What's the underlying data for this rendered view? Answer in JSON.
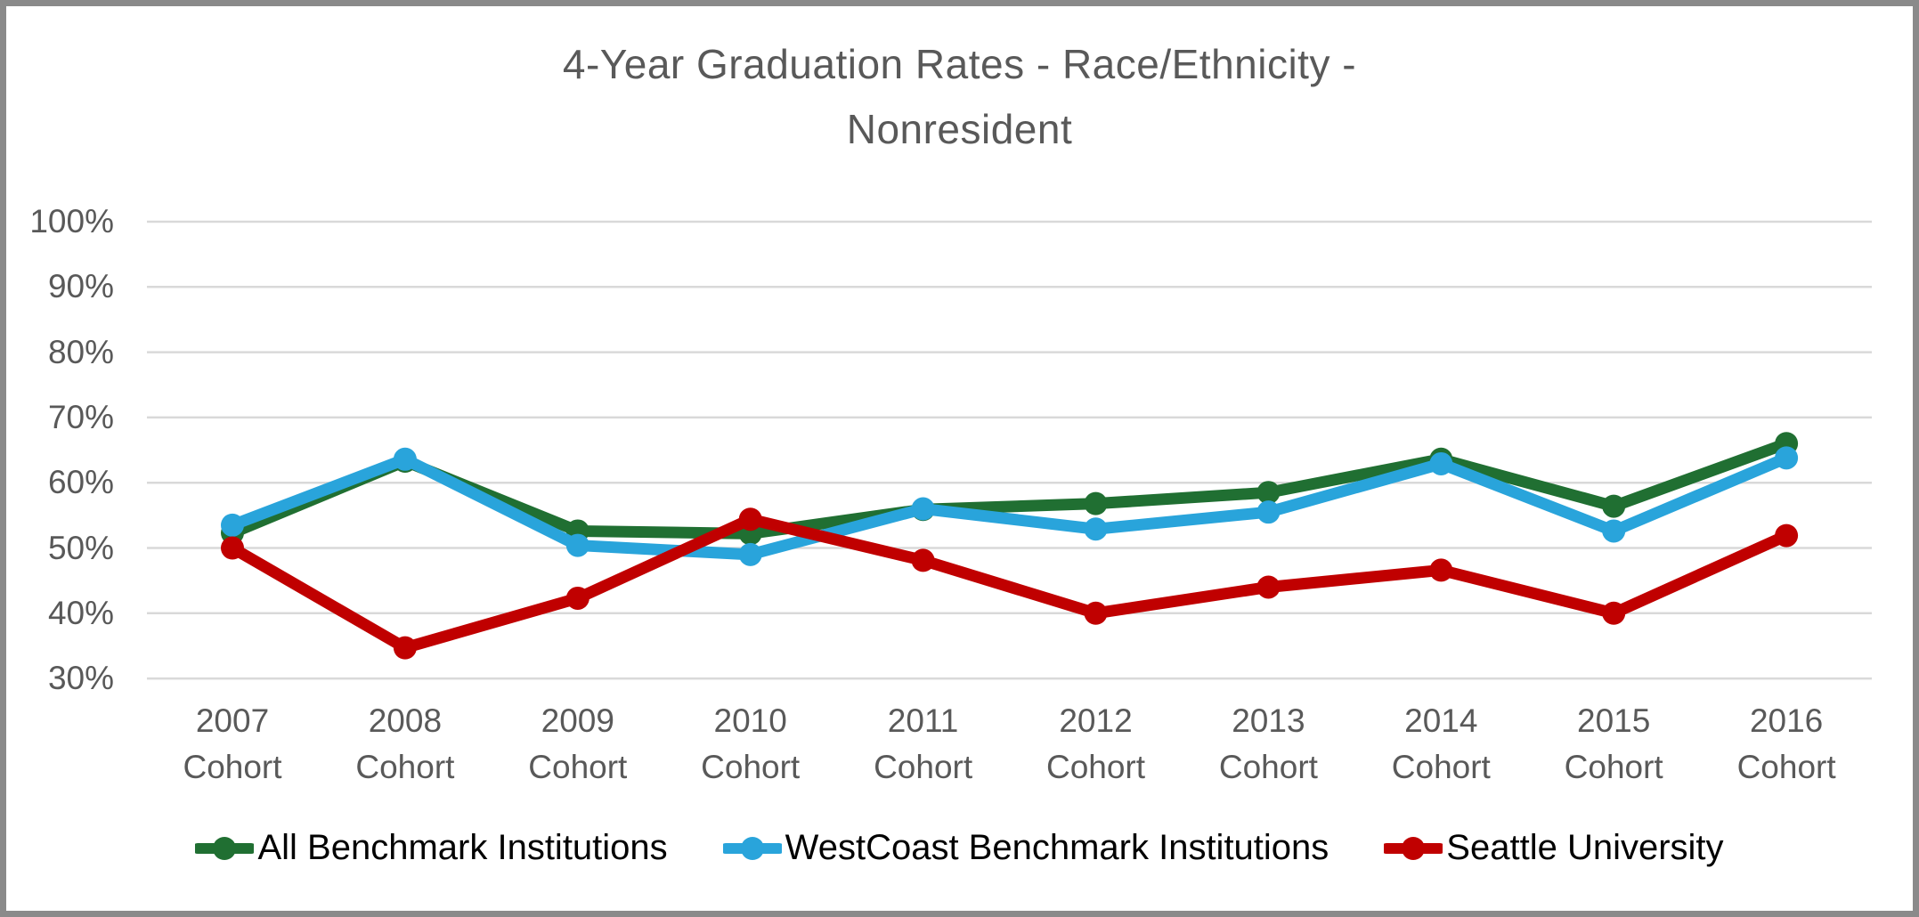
{
  "title_lines": [
    "4-Year Graduation Rates - Race/Ethnicity -",
    "Nonresident"
  ],
  "colors": {
    "background": "#FFFFFF",
    "frame_border": "#8A8A8A",
    "gridline": "#D9D9D9",
    "axis_text": "#595959",
    "title_text": "#595959",
    "legend_text": "#000000"
  },
  "chart_data": {
    "type": "line",
    "title": "4-Year Graduation Rates - Race/Ethnicity - Nonresident",
    "grid": "horizontal",
    "legend_position": "bottom",
    "x_axis": {
      "years": [
        "2007",
        "2008",
        "2009",
        "2010",
        "2011",
        "2012",
        "2013",
        "2014",
        "2015",
        "2016"
      ],
      "label_suffix": "Cohort"
    },
    "y_axis": {
      "min": 30,
      "max": 100,
      "step": 10,
      "tick_labels": [
        "100%",
        "90%",
        "80%",
        "70%",
        "60%",
        "50%",
        "40%",
        "30%"
      ]
    },
    "series": [
      {
        "name": "All Benchmark Institutions",
        "color": "#206F32",
        "values": [
          52.3,
          63.3,
          52.6,
          52.2,
          55.9,
          56.8,
          58.5,
          63.6,
          56.4,
          66.0
        ]
      },
      {
        "name": "WestCoast Benchmark Institutions",
        "color": "#29A4DB",
        "values": [
          53.5,
          63.6,
          50.4,
          49.0,
          56.0,
          52.9,
          55.5,
          62.9,
          52.6,
          63.8
        ]
      },
      {
        "name": "Seattle University",
        "color": "#C00000",
        "values": [
          50.0,
          34.7,
          42.3,
          54.4,
          48.1,
          40.0,
          44.0,
          46.6,
          40.0,
          51.9
        ]
      }
    ]
  }
}
